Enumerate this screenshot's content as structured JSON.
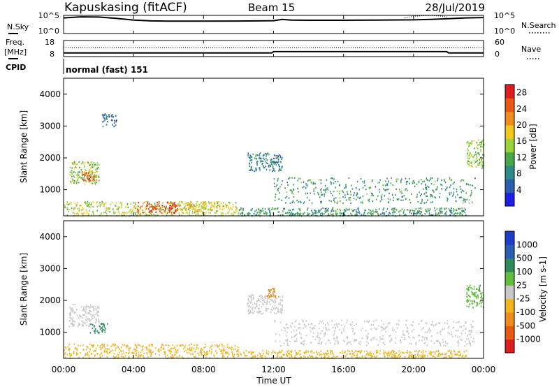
{
  "header": {
    "station": "Kapuskasing (fitACF)",
    "beam": "Beam 15",
    "date": "28/Jul/2019"
  },
  "side_labels": {
    "nsky": "N.Sky",
    "freq": "Freq.",
    "mhz": "[MHz]",
    "cpid": "CPID",
    "nsearch": "N.Search",
    "nave": "Nave",
    "nsky_top": "10^5",
    "nsky_bottom": "10^0",
    "nsearch_top": "10^5",
    "nsearch_bottom": "10^0",
    "freq_top": "18",
    "freq_bottom": "8",
    "nave_top": "60",
    "nave_bottom": "0"
  },
  "cpid_text": "normal (fast) 151",
  "x_axis": {
    "label": "Time UT",
    "ticks": [
      "00:00",
      "04:00",
      "08:00",
      "12:00",
      "16:00",
      "20:00",
      "00:00"
    ]
  },
  "colors": {
    "power": [
      "#1e1ee6",
      "#2a5fb0",
      "#2e8a8a",
      "#4aa64a",
      "#9ad23c",
      "#f0c81e",
      "#f08c1e",
      "#e65a14",
      "#dc1e1e"
    ],
    "velocity": [
      "#dc1e1e",
      "#e65a14",
      "#f08c1e",
      "#f0b41e",
      "#c8c8c8",
      "#5fbe3c",
      "#2e8a5a",
      "#2a5fb0",
      "#1e3cc8"
    ]
  },
  "chart_data": [
    {
      "type": "line",
      "title": "N.Sky / N.Search",
      "x_range_hours": [
        0,
        24
      ],
      "yscale": "log",
      "ylim": [
        1,
        100000
      ],
      "series": [
        {
          "name": "N.Sky",
          "style": "solid",
          "x": [
            0,
            1,
            2,
            3,
            4,
            5,
            6,
            8,
            10,
            12,
            12.5,
            13,
            14,
            16,
            18,
            20,
            21,
            22,
            23,
            24
          ],
          "y": [
            20000,
            40000,
            35000,
            15000,
            5000,
            3000,
            2500,
            2500,
            2800,
            3500,
            8000,
            5000,
            4500,
            4500,
            5000,
            6000,
            8000,
            12000,
            20000,
            25000
          ]
        },
        {
          "name": "N.Search",
          "style": "dotted",
          "x": [
            19.5,
            20,
            20.5,
            21,
            21.5,
            22
          ],
          "y": [
            20000,
            60000,
            80000,
            90000,
            70000,
            30000
          ]
        }
      ]
    },
    {
      "type": "line",
      "title": "Freq. / Nave",
      "x_range_hours": [
        0,
        24
      ],
      "series": [
        {
          "name": "Freq. [MHz]",
          "style": "solid",
          "x": [
            0,
            11.9,
            12,
            21.9,
            22,
            24
          ],
          "y": [
            10.3,
            10.3,
            11.1,
            11.1,
            10.3,
            10.3
          ]
        },
        {
          "name": "Nave",
          "style": "dotted",
          "x": [
            0,
            24
          ],
          "y": [
            33,
            33
          ]
        }
      ]
    },
    {
      "type": "heatmap",
      "title": "Power",
      "xlabel": "",
      "ylabel": "Slant Range [km]",
      "x_range_hours": [
        0,
        24
      ],
      "ylim": [
        180,
        4500
      ],
      "yticks": [
        1000,
        2000,
        3000,
        4000
      ],
      "colorbar": {
        "label": "Power [dB]",
        "ticks": [
          4,
          8,
          12,
          16,
          20,
          24,
          28
        ],
        "range": [
          0,
          30
        ]
      },
      "regions": [
        {
          "t": [
            0.0,
            10.0
          ],
          "r": [
            200,
            650
          ],
          "value": 16
        },
        {
          "t": [
            4.2,
            6.5
          ],
          "r": [
            280,
            650
          ],
          "value": 26
        },
        {
          "t": [
            6.5,
            8.5
          ],
          "r": [
            300,
            650
          ],
          "value": 18
        },
        {
          "t": [
            10.0,
            23.0
          ],
          "r": [
            200,
            450
          ],
          "value": 10
        },
        {
          "t": [
            12.0,
            23.5
          ],
          "r": [
            600,
            1400
          ],
          "value": 10
        },
        {
          "t": [
            10.5,
            12.5
          ],
          "r": [
            1600,
            2200
          ],
          "value": 8
        },
        {
          "t": [
            0.3,
            2.0
          ],
          "r": [
            1200,
            1900
          ],
          "value": 14
        },
        {
          "t": [
            1.0,
            2.0
          ],
          "r": [
            1300,
            1600
          ],
          "value": 24
        },
        {
          "t": [
            2.2,
            3.0
          ],
          "r": [
            3000,
            3400
          ],
          "value": 6
        },
        {
          "t": [
            23.0,
            24.0
          ],
          "r": [
            1700,
            2600
          ],
          "value": 14
        }
      ]
    },
    {
      "type": "heatmap",
      "title": "Velocity",
      "xlabel": "Time UT",
      "ylabel": "Slant Range [km]",
      "x_range_hours": [
        0,
        24
      ],
      "ylim": [
        180,
        4500
      ],
      "yticks": [
        1000,
        2000,
        3000,
        4000
      ],
      "colorbar": {
        "label": "Velocity [m s-1]",
        "ticks": [
          1000,
          500,
          100,
          25,
          -25,
          -100,
          -500,
          -1000
        ]
      },
      "regions": [
        {
          "t": [
            0.0,
            10.0
          ],
          "r": [
            200,
            650
          ],
          "value": -60
        },
        {
          "t": [
            10.0,
            23.0
          ],
          "r": [
            200,
            450
          ],
          "value": -40
        },
        {
          "t": [
            12.0,
            23.5
          ],
          "r": [
            600,
            1400
          ],
          "value": 0
        },
        {
          "t": [
            10.5,
            12.5
          ],
          "r": [
            1600,
            2200
          ],
          "value": 0
        },
        {
          "t": [
            0.3,
            2.0
          ],
          "r": [
            1200,
            1900
          ],
          "value": 0
        },
        {
          "t": [
            1.5,
            2.5
          ],
          "r": [
            1000,
            1300
          ],
          "value": 300
        },
        {
          "t": [
            23.0,
            24.0
          ],
          "r": [
            1800,
            2500
          ],
          "value": 80
        },
        {
          "t": [
            11.6,
            12.1
          ],
          "r": [
            2100,
            2400
          ],
          "value": -150
        }
      ]
    }
  ]
}
